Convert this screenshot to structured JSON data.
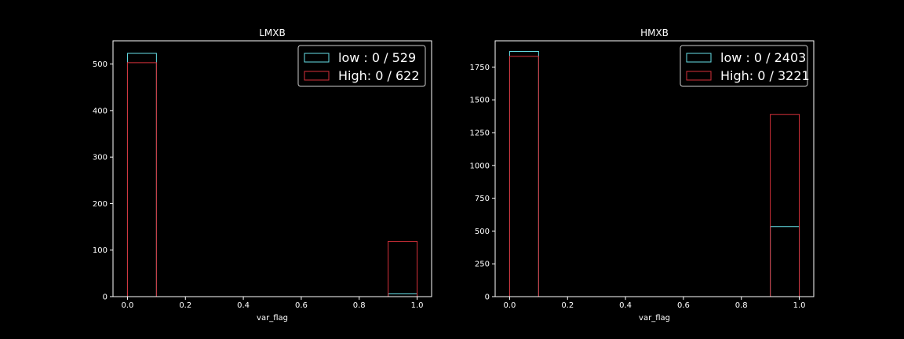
{
  "chart_data": [
    {
      "type": "bar",
      "title": "LMXB",
      "xlabel": "var_flag",
      "ylabel": "",
      "xlim": [
        -0.05,
        1.05
      ],
      "ylim": [
        0,
        550
      ],
      "xticks": [
        0.0,
        0.2,
        0.4,
        0.6,
        0.8,
        1.0
      ],
      "xtick_labels": [
        "0.0",
        "0.2",
        "0.4",
        "0.6",
        "0.8",
        "1.0"
      ],
      "yticks": [
        0,
        100,
        200,
        300,
        400,
        500
      ],
      "ytick_labels": [
        "0",
        "100",
        "200",
        "300",
        "400",
        "500"
      ],
      "legend_position": "top-right",
      "series": [
        {
          "name": "low : 0 / 529",
          "color": "#66e0e8",
          "bins": [
            [
              0.0,
              0.1,
              523
            ],
            [
              0.9,
              1.0,
              6
            ]
          ]
        },
        {
          "name": "High: 0 / 622",
          "color": "#d6303a",
          "bins": [
            [
              0.0,
              0.1,
              503
            ],
            [
              0.9,
              1.0,
              119
            ]
          ]
        }
      ]
    },
    {
      "type": "bar",
      "title": "HMXB",
      "xlabel": "var_flag",
      "ylabel": "",
      "xlim": [
        -0.05,
        1.05
      ],
      "ylim": [
        0,
        1950
      ],
      "xticks": [
        0.0,
        0.2,
        0.4,
        0.6,
        0.8,
        1.0
      ],
      "xtick_labels": [
        "0.0",
        "0.2",
        "0.4",
        "0.6",
        "0.8",
        "1.0"
      ],
      "yticks": [
        0,
        250,
        500,
        750,
        1000,
        1250,
        1500,
        1750
      ],
      "ytick_labels": [
        "0",
        "250",
        "500",
        "750",
        "1000",
        "1250",
        "1500",
        "1750"
      ],
      "legend_position": "top-right",
      "series": [
        {
          "name": "low : 0 / 2403",
          "color": "#66e0e8",
          "bins": [
            [
              0.0,
              0.1,
              1869
            ],
            [
              0.9,
              1.0,
              534
            ]
          ]
        },
        {
          "name": "High: 0 / 3221",
          "color": "#d6303a",
          "bins": [
            [
              0.0,
              0.1,
              1832
            ],
            [
              0.9,
              1.0,
              1389
            ]
          ]
        }
      ]
    }
  ]
}
